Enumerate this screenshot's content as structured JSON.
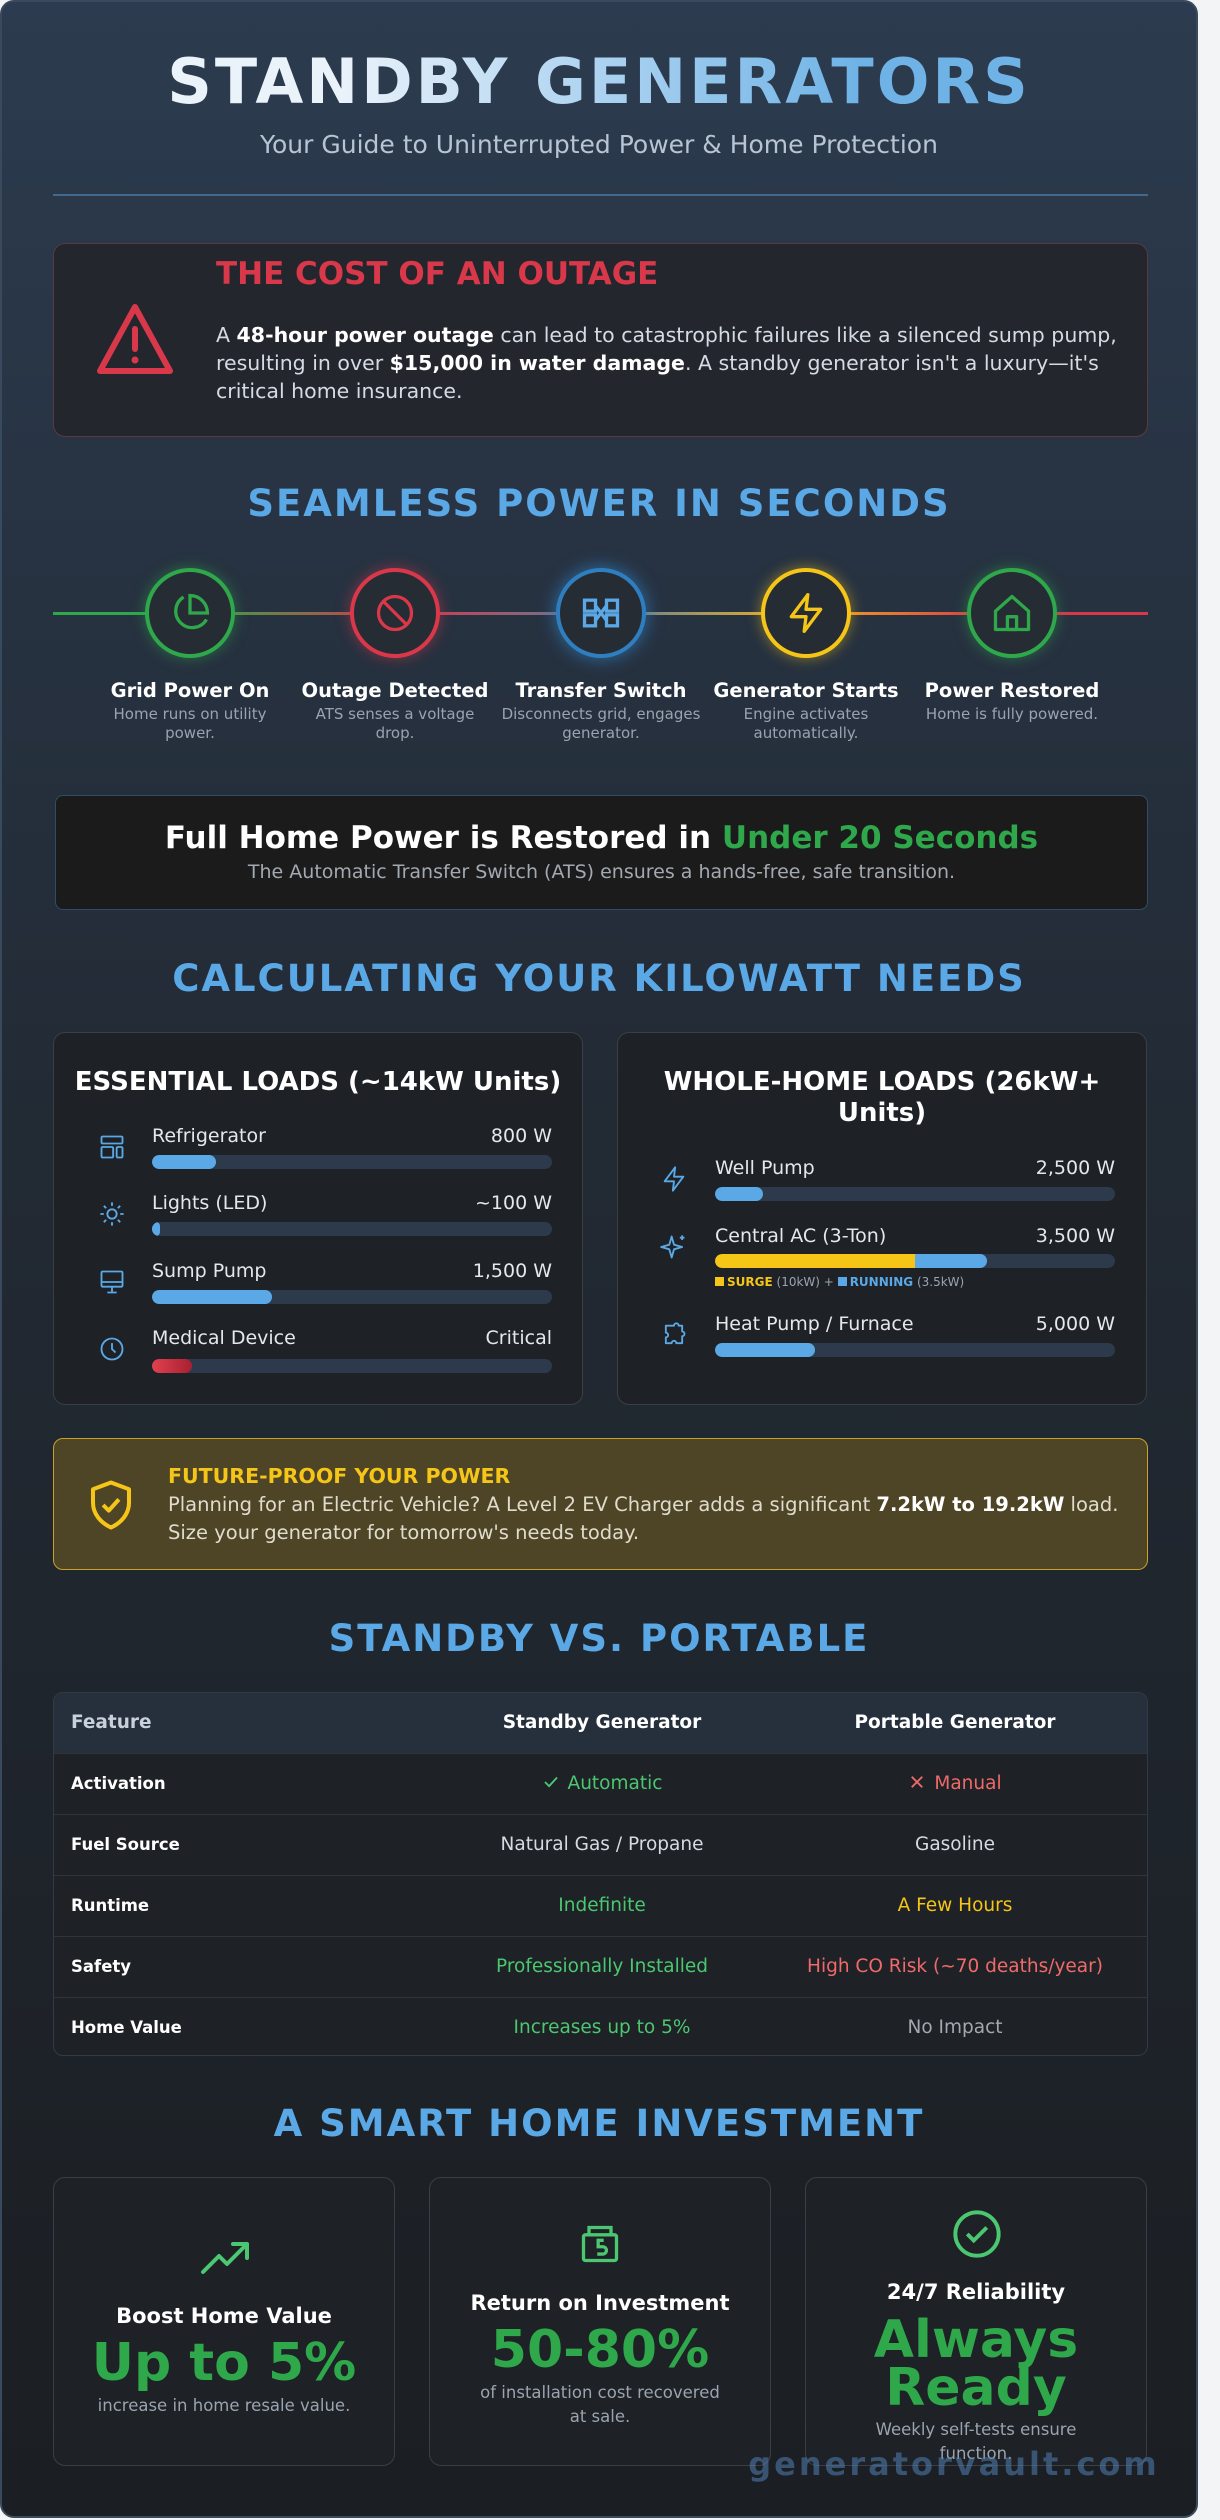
{
  "header": {
    "title": "STANDBY GENERATORS",
    "subtitle": "Your Guide to Uninterrupted Power & Home Protection"
  },
  "alert": {
    "heading": "THE COST OF AN OUTAGE",
    "body": [
      "A ",
      "48-hour power outage",
      " can lead to catastrophic failures like a silenced sump pump, resulting in over ",
      "$15,000 in water damage",
      ". A standby generator isn't a luxury—it's critical home insurance."
    ]
  },
  "process": {
    "heading": "SEAMLESS POWER IN SECONDS",
    "steps": [
      {
        "title": "Grid Power On",
        "desc": "Home runs on utility power."
      },
      {
        "title": "Outage Detected",
        "desc": "ATS senses a voltage drop."
      },
      {
        "title": "Transfer Switch",
        "desc": "Disconnects grid, engages generator."
      },
      {
        "title": "Generator Starts",
        "desc": "Engine activates automatically."
      },
      {
        "title": "Power Restored",
        "desc": "Home is fully powered."
      }
    ]
  },
  "restore": {
    "heading": "Full Home Power is Restored in ",
    "highlight": "Under 20 Seconds",
    "note": "The Automatic Transfer Switch (ATS) ensures a hands-free, safe transition."
  },
  "loads": {
    "heading": "CALCULATING YOUR KILOWATT NEEDS",
    "essential": {
      "title": "ESSENTIAL LOADS (~14kW Units)",
      "items": [
        {
          "name": "Refrigerator",
          "value": "800 W",
          "bar": 16
        },
        {
          "name": "Lights (LED)",
          "value": "~100 W",
          "bar": 2
        },
        {
          "name": "Sump Pump",
          "value": "1,500 W",
          "bar": 30
        },
        {
          "name": "Medical Device",
          "value": "Critical",
          "bar": 10
        }
      ]
    },
    "whole_home": {
      "title": "WHOLE-HOME LOADS (26kW+ Units)",
      "items": [
        {
          "name": "Well Pump",
          "value": "2,500 W",
          "bar": 12
        },
        {
          "name": "Central AC (3-Ton)",
          "value": "3,500 W",
          "segments": [
            {
              "name": "SURGE",
              "note": "(10kW)",
              "bar": 50
            },
            {
              "name": "RUNNING",
              "note": "(3.5kW)",
              "bar": 18
            }
          ],
          "joiner": "+"
        },
        {
          "name": "Heat Pump / Furnace",
          "value": "5,000 W",
          "bar": 25
        }
      ]
    }
  },
  "ev": {
    "heading": "FUTURE-PROOF YOUR POWER",
    "body": [
      "Planning for an Electric Vehicle? A Level 2 EV Charger adds a significant ",
      "7.2kW to 19.2kW",
      " load. Size your generator for tomorrow's needs today."
    ]
  },
  "comparison": {
    "heading": "STANDBY VS. PORTABLE",
    "columns": [
      "Feature",
      "Standby Generator",
      "Portable Generator"
    ],
    "rows": [
      [
        "Activation",
        "Automatic",
        "Manual"
      ],
      [
        "Fuel Source",
        "Natural Gas / Propane",
        "Gasoline"
      ],
      [
        "Runtime",
        "Indefinite",
        "A Few Hours"
      ],
      [
        "Safety",
        "Professionally Installed",
        "High CO Risk (~70 deaths/year)"
      ],
      [
        "Home Value",
        "Increases up to 5%",
        "No Impact"
      ]
    ]
  },
  "investment": {
    "heading": "A SMART HOME INVESTMENT",
    "cards": [
      {
        "title": "Boost Home Value",
        "value": "Up to 5%",
        "caption": "increase in home resale value."
      },
      {
        "title": "Return on Investment",
        "value": "50-80%",
        "caption": "of installation cost recovered at sale."
      },
      {
        "title": "24/7 Reliability",
        "value": "Always Ready",
        "caption": "Weekly self-tests ensure function."
      }
    ]
  },
  "watermark": "generatorvault.com"
}
